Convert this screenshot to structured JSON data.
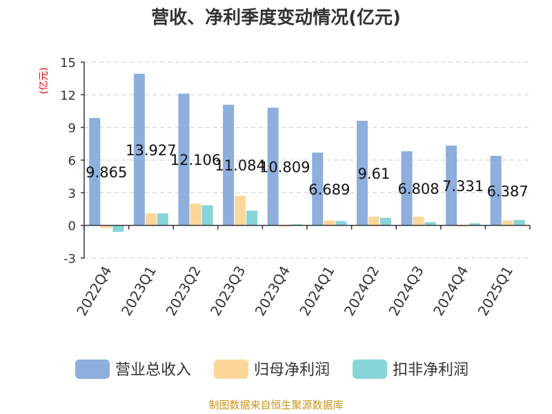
{
  "chart_data": {
    "type": "bar",
    "title": "营收、净利季度变动情况(亿元)",
    "ylabel": "(亿元)",
    "ylim": [
      -3,
      15
    ],
    "yticks": [
      -3,
      0,
      3,
      6,
      9,
      12,
      15
    ],
    "grid": true,
    "legend_position": "bottom",
    "categories": [
      "2022Q4",
      "2023Q1",
      "2023Q2",
      "2023Q3",
      "2023Q4",
      "2024Q1",
      "2024Q2",
      "2024Q3",
      "2024Q4",
      "2025Q1"
    ],
    "series": [
      {
        "name": "营业总收入",
        "color": "#8eaedb",
        "values": [
          9.865,
          13.927,
          12.106,
          11.084,
          10.809,
          6.689,
          9.61,
          6.808,
          7.331,
          6.387
        ],
        "data_labels": [
          "9.865",
          "13.927",
          "12.106",
          "11.084",
          "10.809",
          "6.689",
          "9.61",
          "6.808",
          "7.331",
          "6.387"
        ]
      },
      {
        "name": "归母净利润",
        "color": "#fdd79a",
        "values": [
          -0.25,
          1.1,
          2.0,
          2.7,
          -0.1,
          0.45,
          0.8,
          0.8,
          -0.1,
          0.45
        ]
      },
      {
        "name": "扣非净利润",
        "color": "#86d5d8",
        "values": [
          -0.6,
          1.1,
          1.85,
          1.35,
          0.1,
          0.4,
          0.7,
          0.3,
          0.2,
          0.5
        ]
      }
    ]
  },
  "footer": {
    "source": "制图数据来自恒生聚源数据库"
  }
}
